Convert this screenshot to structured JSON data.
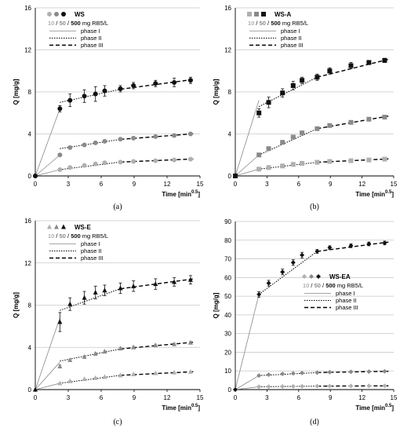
{
  "chart_data": [
    {
      "type": "scatter",
      "caption": "(a)",
      "legend_title": "WS",
      "conc_values": [
        "10",
        "50",
        "500"
      ],
      "conc_unit": "mg RB5/L",
      "phase_labels": [
        "phase I",
        "phase II",
        "phase III"
      ],
      "xlabel": "Time [min",
      "xlabel_exp": "0.5",
      "xlabel_end": "]",
      "ylabel": "Q [mg/g]",
      "xlim": [
        0,
        15
      ],
      "ylim": [
        0,
        16
      ],
      "xticks": [
        0,
        3,
        6,
        9,
        12,
        15
      ],
      "yticks": [
        0,
        4,
        8,
        12,
        16
      ],
      "marker": "circle",
      "series": [
        {
          "name": "10",
          "color": "#b0b0b0",
          "x": [
            0,
            2.24,
            3.16,
            4.47,
            5.48,
            6.32,
            7.75,
            8.94,
            10.95,
            12.65,
            14.14
          ],
          "y": [
            0,
            0.6,
            0.8,
            1.0,
            1.15,
            1.25,
            1.32,
            1.38,
            1.45,
            1.52,
            1.6
          ],
          "err": [
            0,
            0.05,
            0.05,
            0.05,
            0.05,
            0.05,
            0.05,
            0.05,
            0.05,
            0.05,
            0.05
          ]
        },
        {
          "name": "50",
          "color": "#8a8a8a",
          "x": [
            0,
            2.24,
            3.16,
            4.47,
            5.48,
            6.32,
            7.75,
            8.94,
            10.95,
            12.65,
            14.14
          ],
          "y": [
            0,
            2.0,
            2.7,
            2.95,
            3.15,
            3.3,
            3.5,
            3.6,
            3.75,
            3.85,
            4.0
          ],
          "err": [
            0,
            0.1,
            0.1,
            0.1,
            0.1,
            0.1,
            0.1,
            0.1,
            0.1,
            0.1,
            0.1
          ]
        },
        {
          "name": "500",
          "color": "#111111",
          "x": [
            0,
            2.24,
            3.16,
            4.47,
            5.48,
            6.32,
            7.75,
            8.94,
            10.95,
            12.65,
            14.14
          ],
          "y": [
            0,
            6.4,
            7.2,
            7.6,
            7.8,
            8.1,
            8.3,
            8.6,
            8.8,
            8.9,
            9.1
          ],
          "err": [
            0,
            0.3,
            0.6,
            0.6,
            0.7,
            0.5,
            0.3,
            0.3,
            0.3,
            0.4,
            0.3
          ]
        }
      ],
      "phases": [
        {
          "style": "I",
          "points": [
            [
              0,
              0
            ],
            [
              2.24,
              0.6
            ]
          ]
        },
        {
          "style": "II",
          "points": [
            [
              2.24,
              0.6
            ],
            [
              7.75,
              1.32
            ]
          ]
        },
        {
          "style": "III",
          "points": [
            [
              7.75,
              1.32
            ],
            [
              14.5,
              1.62
            ]
          ]
        },
        {
          "style": "I",
          "points": [
            [
              0,
              0
            ],
            [
              2.24,
              2.0
            ]
          ]
        },
        {
          "style": "II",
          "points": [
            [
              2.24,
              2.6
            ],
            [
              7.75,
              3.48
            ]
          ]
        },
        {
          "style": "III",
          "points": [
            [
              7.75,
              3.48
            ],
            [
              14.5,
              4.02
            ]
          ]
        },
        {
          "style": "I",
          "points": [
            [
              0,
              0
            ],
            [
              2.24,
              6.4
            ]
          ]
        },
        {
          "style": "II",
          "points": [
            [
              2.24,
              7.0
            ],
            [
              7.75,
              8.25
            ]
          ]
        },
        {
          "style": "III",
          "points": [
            [
              7.75,
              8.25
            ],
            [
              14.5,
              9.2
            ]
          ]
        }
      ]
    },
    {
      "type": "scatter",
      "caption": "(b)",
      "legend_title": "WS-A",
      "conc_values": [
        "10",
        "50",
        "500"
      ],
      "conc_unit": "mg RB5/L",
      "phase_labels": [
        "phase I",
        "phase II",
        "phase III"
      ],
      "xlabel": "Time [min",
      "xlabel_exp": "0.5",
      "xlabel_end": "]",
      "ylabel": "Q [mg/g]",
      "xlim": [
        0,
        15
      ],
      "ylim": [
        0,
        16
      ],
      "xticks": [
        0,
        3,
        6,
        9,
        12,
        15
      ],
      "yticks": [
        0,
        4,
        8,
        12,
        16
      ],
      "marker": "square",
      "series": [
        {
          "name": "10",
          "color": "#b0b0b0",
          "x": [
            0,
            2.24,
            3.16,
            4.47,
            5.48,
            6.32,
            7.75,
            8.94,
            10.95,
            12.65,
            14.14
          ],
          "y": [
            0,
            0.65,
            0.8,
            0.95,
            1.1,
            1.2,
            1.3,
            1.38,
            1.45,
            1.52,
            1.6
          ],
          "err": [
            0,
            0.05,
            0.05,
            0.05,
            0.05,
            0.05,
            0.05,
            0.05,
            0.05,
            0.05,
            0.05
          ]
        },
        {
          "name": "50",
          "color": "#8a8a8a",
          "x": [
            0,
            2.24,
            3.16,
            4.47,
            5.48,
            6.32,
            7.75,
            8.94,
            10.95,
            12.65,
            14.14
          ],
          "y": [
            0,
            2.0,
            2.6,
            3.2,
            3.7,
            4.1,
            4.5,
            4.8,
            5.1,
            5.4,
            5.6
          ],
          "err": [
            0,
            0.1,
            0.1,
            0.1,
            0.1,
            0.1,
            0.1,
            0.1,
            0.1,
            0.1,
            0.1
          ]
        },
        {
          "name": "500",
          "color": "#111111",
          "x": [
            0,
            2.24,
            3.16,
            4.47,
            5.48,
            6.32,
            7.75,
            8.94,
            10.95,
            12.65,
            14.14
          ],
          "y": [
            0,
            6.0,
            7.0,
            7.9,
            8.6,
            9.1,
            9.4,
            10.0,
            10.5,
            10.8,
            11.0
          ],
          "err": [
            0,
            0.4,
            0.5,
            0.4,
            0.4,
            0.3,
            0.3,
            0.3,
            0.3,
            0.2,
            0.2
          ]
        }
      ],
      "phases": [
        {
          "style": "I",
          "points": [
            [
              0,
              0
            ],
            [
              2.24,
              0.65
            ]
          ]
        },
        {
          "style": "II",
          "points": [
            [
              2.24,
              0.65
            ],
            [
              7.75,
              1.3
            ]
          ]
        },
        {
          "style": "III",
          "points": [
            [
              7.75,
              1.3
            ],
            [
              14.5,
              1.62
            ]
          ]
        },
        {
          "style": "I",
          "points": [
            [
              0,
              0
            ],
            [
              2.24,
              2.0
            ]
          ]
        },
        {
          "style": "II",
          "points": [
            [
              2.24,
              2.0
            ],
            [
              7.75,
              4.5
            ]
          ]
        },
        {
          "style": "III",
          "points": [
            [
              7.75,
              4.5
            ],
            [
              14.5,
              5.7
            ]
          ]
        },
        {
          "style": "I",
          "points": [
            [
              0,
              0
            ],
            [
              2.24,
              7.2
            ]
          ]
        },
        {
          "style": "II",
          "points": [
            [
              2.24,
              6.6
            ],
            [
              7.75,
              9.4
            ]
          ]
        },
        {
          "style": "III",
          "points": [
            [
              7.75,
              9.4
            ],
            [
              14.5,
              11.1
            ]
          ]
        }
      ]
    },
    {
      "type": "scatter",
      "caption": "(c)",
      "legend_title": "WS-E",
      "conc_values": [
        "10",
        "50",
        "500"
      ],
      "conc_unit": "mg RB5/L",
      "phase_labels": [
        "phase I",
        "phase II",
        "phase III"
      ],
      "xlabel": "Time [min",
      "xlabel_exp": "0.5",
      "xlabel_end": "]",
      "ylabel": "Q [mg/g]",
      "xlim": [
        0,
        15
      ],
      "ylim": [
        0,
        16
      ],
      "xticks": [
        0,
        3,
        6,
        9,
        12,
        15
      ],
      "yticks": [
        0,
        4,
        8,
        12,
        16
      ],
      "marker": "triangle",
      "series": [
        {
          "name": "10",
          "color": "#b0b0b0",
          "x": [
            0,
            2.24,
            3.16,
            4.47,
            5.48,
            6.32,
            7.75,
            8.94,
            10.95,
            12.65,
            14.14
          ],
          "y": [
            0,
            0.6,
            0.8,
            1.0,
            1.1,
            1.2,
            1.35,
            1.45,
            1.55,
            1.62,
            1.68
          ],
          "err": [
            0,
            0.05,
            0.05,
            0.05,
            0.05,
            0.05,
            0.05,
            0.05,
            0.05,
            0.05,
            0.05
          ]
        },
        {
          "name": "50",
          "color": "#8a8a8a",
          "x": [
            0,
            2.24,
            3.16,
            4.47,
            5.48,
            6.32,
            7.75,
            8.94,
            10.95,
            12.65,
            14.14
          ],
          "y": [
            0,
            2.2,
            2.8,
            3.1,
            3.4,
            3.6,
            3.9,
            4.0,
            4.2,
            4.3,
            4.45
          ],
          "err": [
            0,
            0.15,
            0.1,
            0.1,
            0.1,
            0.1,
            0.1,
            0.1,
            0.1,
            0.1,
            0.1
          ]
        },
        {
          "name": "500",
          "color": "#111111",
          "x": [
            0,
            2.24,
            3.16,
            4.47,
            5.48,
            6.32,
            7.75,
            8.94,
            10.95,
            12.65,
            14.14
          ],
          "y": [
            0,
            6.4,
            8.1,
            8.7,
            9.2,
            9.4,
            9.6,
            9.8,
            10.0,
            10.2,
            10.4
          ],
          "err": [
            0,
            0.9,
            0.6,
            0.6,
            0.6,
            0.5,
            0.5,
            0.5,
            0.5,
            0.4,
            0.4
          ]
        }
      ],
      "phases": [
        {
          "style": "I",
          "points": [
            [
              0,
              0
            ],
            [
              2.24,
              0.6
            ]
          ]
        },
        {
          "style": "II",
          "points": [
            [
              2.24,
              0.6
            ],
            [
              7.75,
              1.35
            ]
          ]
        },
        {
          "style": "III",
          "points": [
            [
              7.75,
              1.35
            ],
            [
              14.5,
              1.7
            ]
          ]
        },
        {
          "style": "I",
          "points": [
            [
              0,
              0
            ],
            [
              2.24,
              2.6
            ]
          ]
        },
        {
          "style": "II",
          "points": [
            [
              2.24,
              2.7
            ],
            [
              7.75,
              3.85
            ]
          ]
        },
        {
          "style": "III",
          "points": [
            [
              7.75,
              3.85
            ],
            [
              14.5,
              4.5
            ]
          ]
        },
        {
          "style": "I",
          "points": [
            [
              0,
              0
            ],
            [
              2.24,
              6.8
            ]
          ]
        },
        {
          "style": "II",
          "points": [
            [
              2.24,
              7.5
            ],
            [
              7.75,
              9.55
            ]
          ]
        },
        {
          "style": "III",
          "points": [
            [
              7.75,
              9.55
            ],
            [
              14.5,
              10.5
            ]
          ]
        }
      ]
    },
    {
      "type": "scatter",
      "caption": "(d)",
      "legend_title": "WS-EA",
      "conc_values": [
        "10",
        "50",
        "500"
      ],
      "conc_unit": "mg RB5/L",
      "phase_labels": [
        "phase I",
        "phase II",
        "phase III"
      ],
      "xlabel": "Time [min",
      "xlabel_exp": "0.5",
      "xlabel_end": "]",
      "ylabel": "Q [mg/g]",
      "xlim": [
        0,
        15
      ],
      "ylim": [
        0,
        90
      ],
      "xticks": [
        0,
        3,
        6,
        9,
        12,
        15
      ],
      "yticks": [
        0,
        10,
        20,
        30,
        40,
        50,
        60,
        70,
        80,
        90
      ],
      "marker": "diamond",
      "series": [
        {
          "name": "10",
          "color": "#b0b0b0",
          "x": [
            0,
            2.24,
            3.16,
            4.47,
            5.48,
            6.32,
            7.75,
            8.94,
            10.95,
            12.65,
            14.14
          ],
          "y": [
            0,
            1.5,
            1.6,
            1.7,
            1.75,
            1.8,
            1.85,
            1.9,
            1.95,
            2.0,
            2.0
          ],
          "err": [
            0,
            0.2,
            0.2,
            0.2,
            0.2,
            0.2,
            0.2,
            0.2,
            0.2,
            0.2,
            0.2
          ]
        },
        {
          "name": "50",
          "color": "#8a8a8a",
          "x": [
            0,
            2.24,
            3.16,
            4.47,
            5.48,
            6.32,
            7.75,
            8.94,
            10.95,
            12.65,
            14.14
          ],
          "y": [
            0,
            7.5,
            8.0,
            8.4,
            8.7,
            8.9,
            9.1,
            9.3,
            9.5,
            9.6,
            9.8
          ],
          "err": [
            0,
            0.3,
            0.3,
            0.3,
            0.3,
            0.3,
            0.3,
            0.3,
            0.3,
            0.3,
            0.3
          ]
        },
        {
          "name": "500",
          "color": "#111111",
          "x": [
            0,
            2.24,
            3.16,
            4.47,
            5.48,
            6.32,
            7.75,
            8.94,
            10.95,
            12.65,
            14.14
          ],
          "y": [
            0,
            51,
            57,
            63,
            68,
            72,
            74,
            76,
            77,
            78,
            78.5
          ],
          "err": [
            0,
            1.5,
            1.5,
            1.5,
            1.5,
            1.5,
            1.0,
            1.0,
            1.0,
            1.0,
            1.0
          ]
        }
      ],
      "phases": [
        {
          "style": "I",
          "points": [
            [
              0,
              0
            ],
            [
              2.24,
              1.5
            ]
          ]
        },
        {
          "style": "II",
          "points": [
            [
              2.24,
              1.5
            ],
            [
              7.75,
              1.85
            ]
          ]
        },
        {
          "style": "III",
          "points": [
            [
              7.75,
              1.85
            ],
            [
              14.5,
              2.0
            ]
          ]
        },
        {
          "style": "I",
          "points": [
            [
              0,
              0
            ],
            [
              2.24,
              7.5
            ]
          ]
        },
        {
          "style": "II",
          "points": [
            [
              2.24,
              7.5
            ],
            [
              7.75,
              9.1
            ]
          ]
        },
        {
          "style": "III",
          "points": [
            [
              7.75,
              9.1
            ],
            [
              14.5,
              9.8
            ]
          ]
        },
        {
          "style": "I",
          "points": [
            [
              0,
              0
            ],
            [
              2.24,
              51
            ]
          ]
        },
        {
          "style": "II",
          "points": [
            [
              2.24,
              51
            ],
            [
              7.75,
              74
            ]
          ]
        },
        {
          "style": "III",
          "points": [
            [
              7.75,
              74
            ],
            [
              14.5,
              79
            ]
          ]
        }
      ]
    }
  ]
}
